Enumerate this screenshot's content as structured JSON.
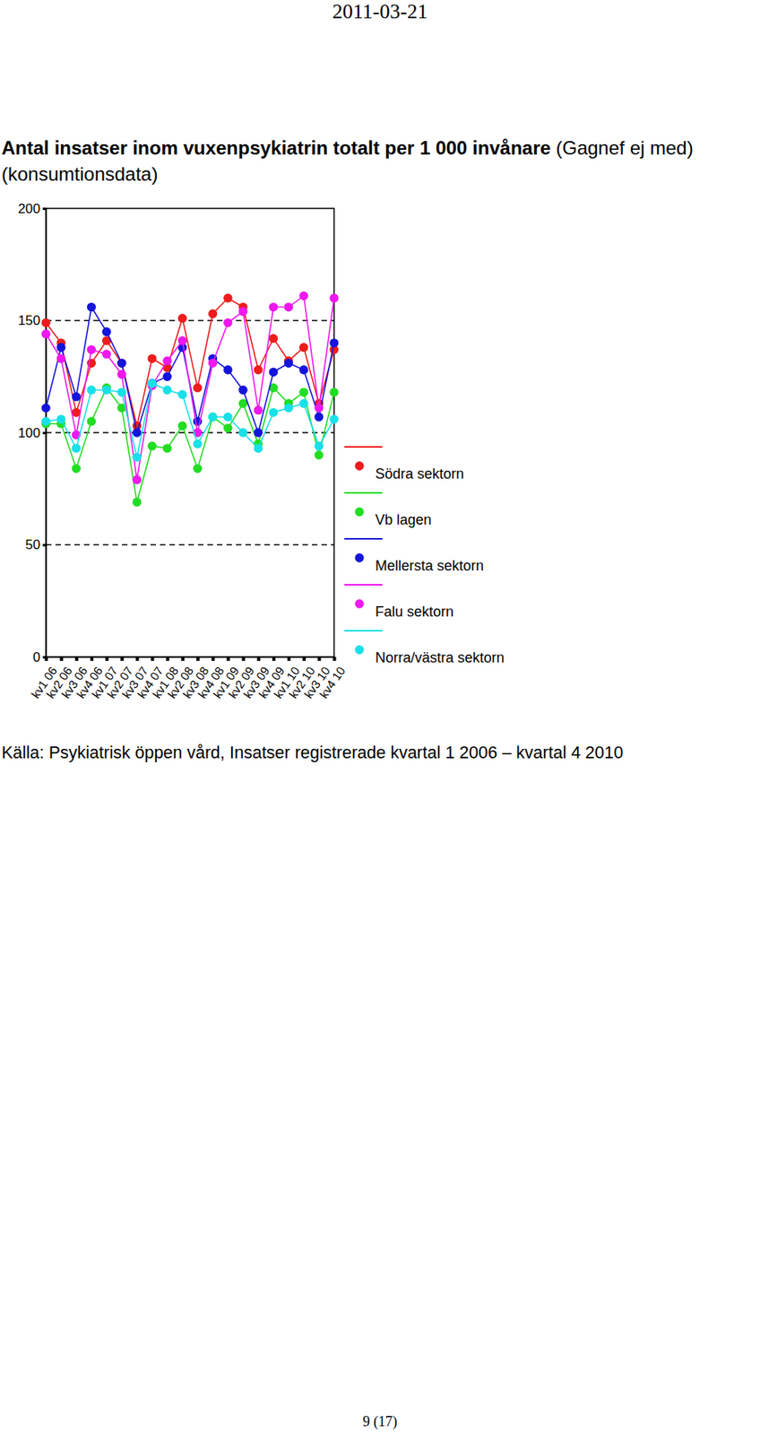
{
  "header": "2011-03-21",
  "source": "Källa: Psykiatrisk öppen vård, Insatser registrerade kvartal 1 2006 – kvartal 4 2010",
  "page_number": "9 (17)",
  "chart_data": {
    "type": "line",
    "title": "Antal insatser inom vuxenpsykiatrin totalt per 1 000 invånare",
    "subtitle": "(Gagnef ej med) (konsumtionsdata)",
    "categories": [
      "kv1 06",
      "kv2 06",
      "kv3 06",
      "kv4 06",
      "kv1 07",
      "kv2 07",
      "kv3 07",
      "kv4 07",
      "kv1 08",
      "kv2 08",
      "kv3 08",
      "kv4 08",
      "kv1 09",
      "kv2 09",
      "kv3 09",
      "kv4 09",
      "kv1 10",
      "kv2 10",
      "kv3 10",
      "kv4 10"
    ],
    "series": [
      {
        "name": "Södra sektorn",
        "color": "#ee1c1c",
        "values": [
          149,
          140,
          109,
          131,
          141,
          131,
          103,
          133,
          129,
          151,
          120,
          153,
          160,
          156,
          128,
          142,
          132,
          138,
          113,
          137
        ]
      },
      {
        "name": "Vb lagen",
        "color": "#22dd22",
        "values": [
          104,
          104,
          84,
          105,
          120,
          111,
          69,
          94,
          93,
          103,
          84,
          107,
          102,
          113,
          95,
          120,
          113,
          118,
          90,
          118
        ]
      },
      {
        "name": "Mellersta sektorn",
        "color": "#1414dc",
        "values": [
          111,
          138,
          116,
          156,
          145,
          131,
          100,
          122,
          125,
          138,
          105,
          133,
          128,
          119,
          100,
          127,
          131,
          128,
          107,
          140
        ]
      },
      {
        "name": "Falu sektorn",
        "color": "#ee18ee",
        "values": [
          144,
          133,
          99,
          137,
          135,
          126,
          79,
          121,
          132,
          141,
          100,
          131,
          149,
          154,
          110,
          156,
          156,
          161,
          111,
          160
        ]
      },
      {
        "name": "Norra/västra sektorn",
        "color": "#18e0e8",
        "values": [
          105,
          106,
          93,
          119,
          119,
          118,
          89,
          122,
          119,
          117,
          95,
          107,
          107,
          100,
          93,
          109,
          111,
          113,
          94,
          106
        ]
      }
    ],
    "ylim": [
      0,
      200
    ],
    "yticks": [
      0,
      50,
      100,
      150,
      200
    ],
    "grid": true,
    "marker": "circle",
    "legend": "right"
  }
}
